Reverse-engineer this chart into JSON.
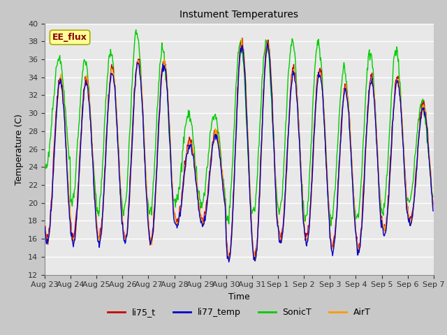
{
  "title": "Instument Temperatures",
  "xlabel": "Time",
  "ylabel": "Temperature (C)",
  "ylim": [
    12,
    40
  ],
  "yticks": [
    12,
    14,
    16,
    18,
    20,
    22,
    24,
    26,
    28,
    30,
    32,
    34,
    36,
    38,
    40
  ],
  "xtick_labels": [
    "Aug 23",
    "Aug 24",
    "Aug 25",
    "Aug 26",
    "Aug 27",
    "Aug 28",
    "Aug 29",
    "Aug 30",
    "Aug 31",
    "Sep 1",
    "Sep 2",
    "Sep 3",
    "Sep 4",
    "Sep 5",
    "Sep 6",
    "Sep 7"
  ],
  "annotation": "EE_flux",
  "legend_labels": [
    "li75_t",
    "li77_temp",
    "SonicT",
    "AirT"
  ],
  "legend_colors": [
    "#cc0000",
    "#0000cc",
    "#00cc00",
    "#ff9900"
  ],
  "bg_color": "#e8e8e8",
  "grid_color": "#ffffff",
  "line_width": 1.0,
  "days": 15,
  "day_peaks": [
    34,
    34,
    35,
    36,
    36,
    27,
    28,
    38,
    38,
    35,
    35,
    33,
    34,
    34,
    31
  ],
  "day_mins": [
    16,
    16,
    16,
    16,
    16,
    18,
    18,
    14,
    14,
    16,
    16,
    15,
    15,
    17,
    18
  ],
  "sonic_peaks": [
    36,
    36,
    37,
    39,
    37,
    30,
    30,
    38,
    38,
    38,
    38,
    35,
    37,
    37,
    31
  ],
  "sonic_mins": [
    24,
    20,
    19,
    19,
    19,
    20,
    20,
    18,
    19,
    19,
    18,
    18,
    18,
    19,
    20
  ],
  "n_per_day": 48
}
